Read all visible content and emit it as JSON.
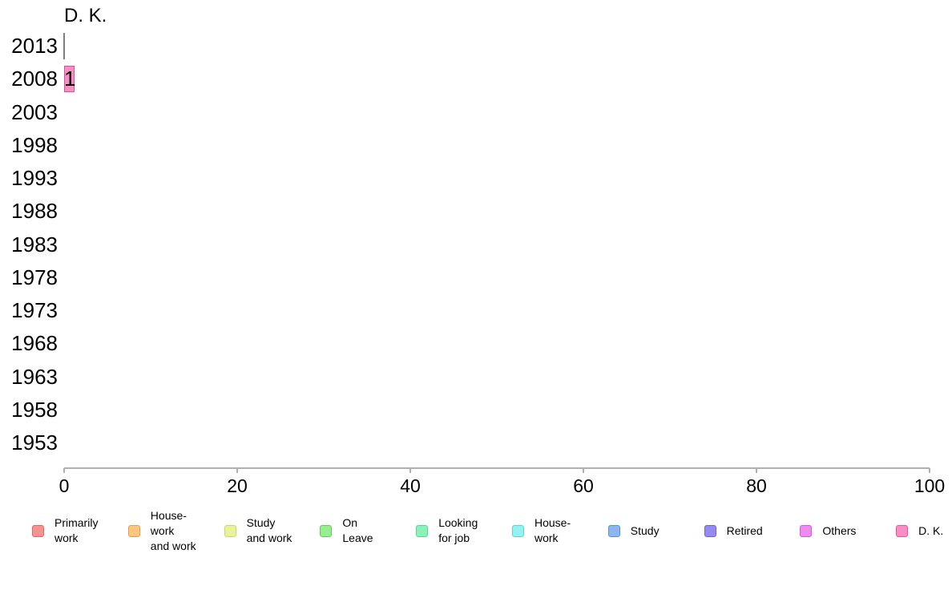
{
  "chart_data": {
    "type": "bar",
    "orientation": "horizontal",
    "title": "D. K.",
    "categories": [
      "2013",
      "2008",
      "2003",
      "1998",
      "1993",
      "1988",
      "1983",
      "1978",
      "1973",
      "1968",
      "1963",
      "1958",
      "1953"
    ],
    "values": [
      0,
      1,
      null,
      null,
      null,
      null,
      null,
      null,
      null,
      null,
      null,
      null,
      null
    ],
    "bar_labels": [
      "",
      "1",
      "",
      "",
      "",
      "",
      "",
      "",
      "",
      "",
      "",
      "",
      ""
    ],
    "xlabel": "",
    "ylabel": "",
    "xlim": [
      0,
      100
    ],
    "x_ticks": [
      0,
      20,
      40,
      60,
      80,
      100
    ],
    "grid": false,
    "legend_position": "bottom",
    "colors": {
      "bar_fill": "#f78fc5",
      "bar_border": "#d4549c",
      "zero_bar": "#7f7f7f",
      "axis": "#b0b0b0",
      "text": "#000000",
      "background": "#ffffff"
    },
    "legend": [
      {
        "label": "Primarily work",
        "label_lines": [
          "Primarily",
          "work"
        ],
        "fill": "#f59393",
        "border": "#e06666"
      },
      {
        "label": "House-work and work",
        "label_lines": [
          "House-",
          "work",
          "and work"
        ],
        "fill": "#f9c87e",
        "border": "#e0a050"
      },
      {
        "label": "Study and work",
        "label_lines": [
          "Study",
          "and work"
        ],
        "fill": "#e7f29b",
        "border": "#c6d96a"
      },
      {
        "label": "On Leave",
        "label_lines": [
          "On",
          "Leave"
        ],
        "fill": "#97ee90",
        "border": "#63cc60"
      },
      {
        "label": "Looking for job",
        "label_lines": [
          "Looking",
          "for job"
        ],
        "fill": "#8bf2b9",
        "border": "#58d68d"
      },
      {
        "label": "House-work",
        "label_lines": [
          "House-",
          "work"
        ],
        "fill": "#93f2f2",
        "border": "#58d6d6"
      },
      {
        "label": "Study",
        "label_lines": [
          "Study"
        ],
        "fill": "#8cb6f2",
        "border": "#5c8ee0"
      },
      {
        "label": "Retired",
        "label_lines": [
          "Retired"
        ],
        "fill": "#948af0",
        "border": "#6e60e0"
      },
      {
        "label": "Others",
        "label_lines": [
          "Others"
        ],
        "fill": "#ee8af2",
        "border": "#cc5ce0"
      },
      {
        "label": "D. K.",
        "label_lines": [
          "D. K."
        ],
        "fill": "#f78fc5",
        "border": "#e0559e"
      }
    ]
  }
}
